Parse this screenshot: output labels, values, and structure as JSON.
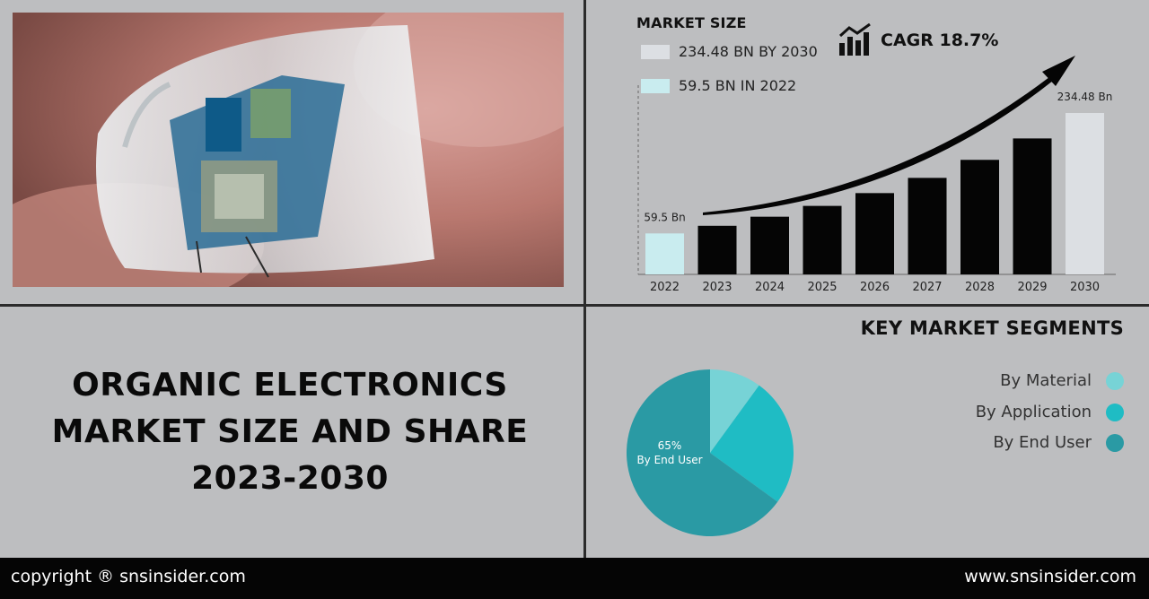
{
  "header": {
    "market_size_title": "MARKET SIZE",
    "legend": [
      {
        "text": "234.48 BN BY 2030",
        "color": "#dcdfe3"
      },
      {
        "text": "59.5 BN IN 2022",
        "color": "#c9ecef"
      }
    ],
    "cagr": "CAGR 18.7%"
  },
  "title": {
    "line1": "ORGANIC ELECTRONICS",
    "line2": "MARKET SIZE AND SHARE",
    "line3": "2023-2030"
  },
  "segments": {
    "title": "KEY MARKET SEGMENTS",
    "items": [
      {
        "label": "By Material",
        "color": "#77d3d6"
      },
      {
        "label": "By Application",
        "color": "#1fbcc4"
      },
      {
        "label": "By End User",
        "color": "#2a9aa4"
      }
    ]
  },
  "footer": {
    "copyright": "copyright ® snsinsider.com",
    "website": "www.snsinsider.com"
  },
  "chart_data": [
    {
      "type": "bar",
      "categories": [
        "2022",
        "2023",
        "2024",
        "2025",
        "2026",
        "2027",
        "2028",
        "2029",
        "2030"
      ],
      "values": [
        59.5,
        70.6,
        83.8,
        99.5,
        118.1,
        140.2,
        166.4,
        197.5,
        234.48
      ],
      "data_labels": {
        "2022": "59.5 Bn",
        "2030": "234.48 Bn"
      },
      "colors": {
        "first": "#c9ecef",
        "middle": "#050505",
        "last": "#dcdfe3"
      },
      "ylim": [
        0,
        234.48
      ],
      "trend_arrow": true
    },
    {
      "type": "pie",
      "slices": [
        {
          "name": "By Material",
          "value": 10,
          "color": "#77d3d6"
        },
        {
          "name": "By Application",
          "value": 25,
          "color": "#1fbcc4"
        },
        {
          "name": "By End User",
          "value": 65,
          "color": "#2a9aa4"
        }
      ],
      "label": {
        "percent": "65%",
        "text": "By End User"
      }
    }
  ]
}
